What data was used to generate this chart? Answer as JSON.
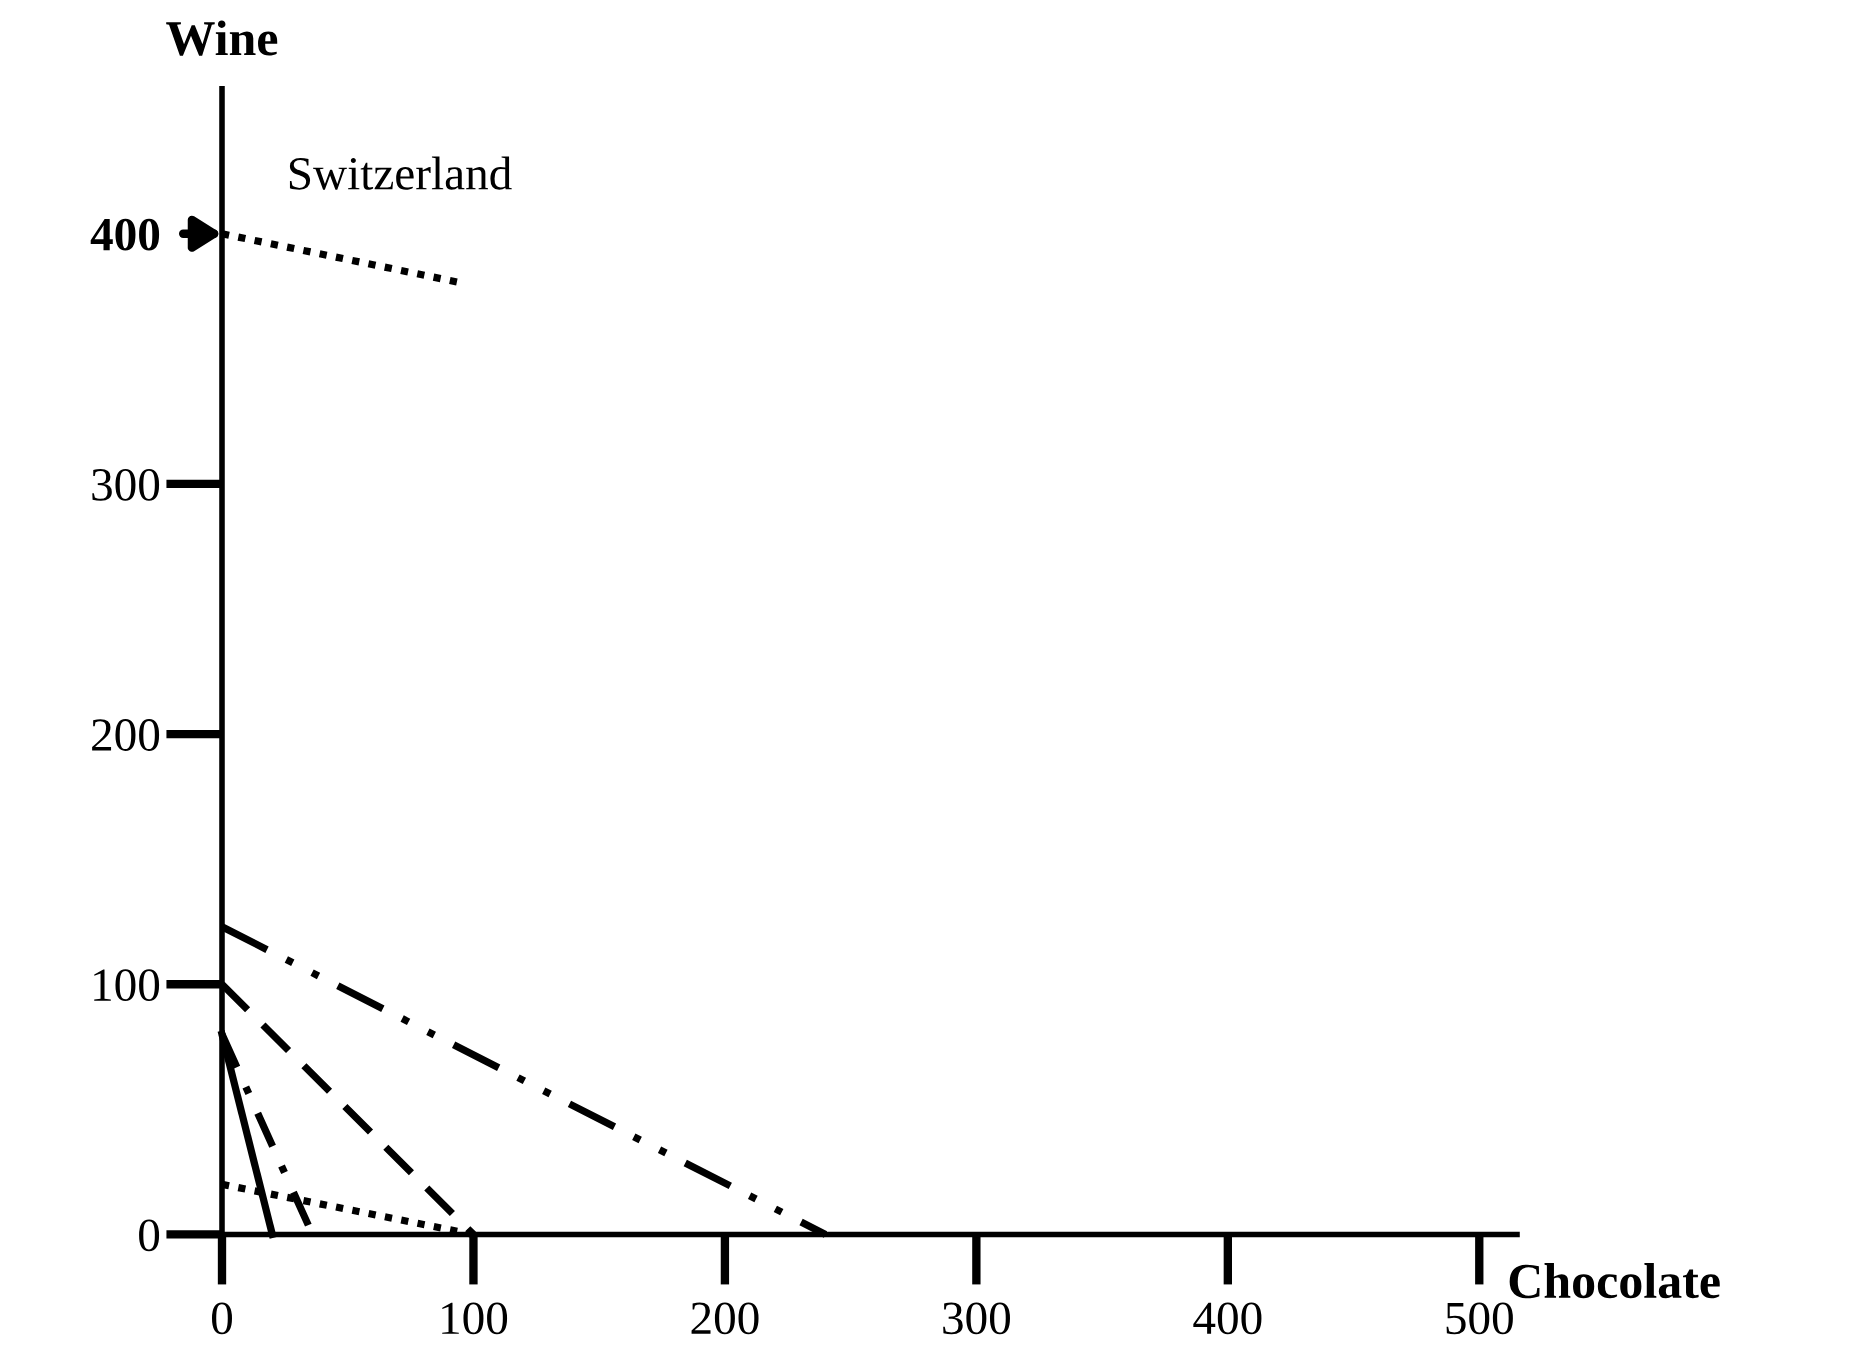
{
  "chart_data": {
    "type": "line",
    "xlabel": "Chocolate",
    "ylabel": "Wine",
    "xlim": [
      0,
      515
    ],
    "ylim": [
      0,
      458
    ],
    "xticks": [
      0,
      100,
      200,
      300,
      400,
      500
    ],
    "yticks": [
      0,
      100,
      200,
      300,
      400
    ],
    "grid": false,
    "legend": false,
    "marker": "none",
    "series": [
      {
        "name": "Switzerland",
        "color": "#000000",
        "line_style": "dotted",
        "x": [
          0,
          97
        ],
        "values": [
          400,
          380
        ]
      },
      {
        "color": "#000000",
        "line_style": "dashdotdot",
        "x": [
          0,
          240
        ],
        "values": [
          123,
          0
        ]
      },
      {
        "color": "#000000",
        "line_style": "dashed",
        "x": [
          0,
          100
        ],
        "values": [
          100,
          0
        ]
      },
      {
        "color": "#000000",
        "line_style": "solid",
        "x": [
          0,
          20
        ],
        "values": [
          80,
          0
        ]
      },
      {
        "color": "#000000",
        "line_style": "dashdot",
        "x": [
          0,
          36
        ],
        "values": [
          80,
          0
        ]
      },
      {
        "color": "#000000",
        "line_style": "dotted",
        "x": [
          0,
          100
        ],
        "values": [
          20,
          0
        ]
      }
    ]
  }
}
